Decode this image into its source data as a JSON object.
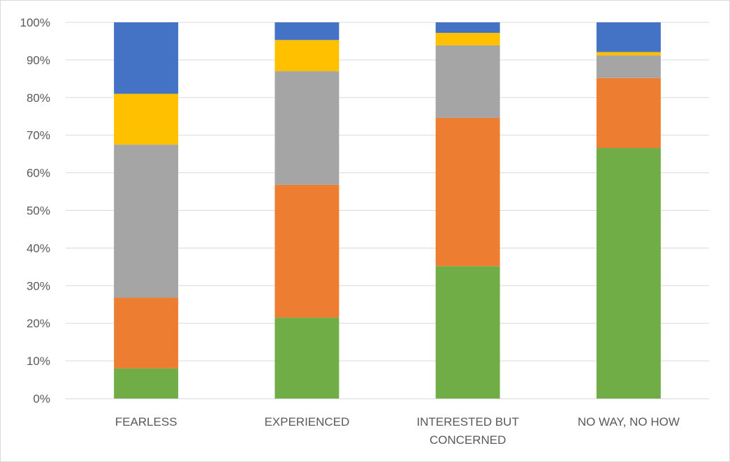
{
  "chart_data": {
    "type": "bar",
    "stacked": "percent",
    "categories": [
      "FEARLESS",
      "EXPERIENCED",
      "INTERESTED BUT CONCERNED",
      "NO WAY, NO HOW"
    ],
    "category_label_lines": [
      [
        "FEARLESS"
      ],
      [
        "EXPERIENCED"
      ],
      [
        "INTERESTED BUT",
        "CONCERNED"
      ],
      [
        "NO WAY, NO HOW"
      ]
    ],
    "series": [
      {
        "color": "#70ad47",
        "values": [
          8,
          21.5,
          35.2,
          66.6
        ]
      },
      {
        "color": "#ed7d31",
        "values": [
          18.8,
          35.3,
          39.4,
          18.6
        ]
      },
      {
        "color": "#a5a5a5",
        "values": [
          40.7,
          30.2,
          19.3,
          6
        ]
      },
      {
        "color": "#ffc000",
        "values": [
          13.5,
          8.3,
          3.3,
          0.9
        ]
      },
      {
        "color": "#4472c4",
        "values": [
          19,
          4.7,
          2.8,
          7.9
        ]
      }
    ],
    "ylim": [
      0,
      100
    ],
    "y_ticks": [
      0,
      10,
      20,
      30,
      40,
      50,
      60,
      70,
      80,
      90,
      100
    ],
    "y_tick_labels": [
      "0%",
      "10%",
      "20%",
      "30%",
      "40%",
      "50%",
      "60%",
      "70%",
      "80%",
      "90%",
      "100%"
    ],
    "grid": true,
    "legend": "none",
    "title": "",
    "xlabel": "",
    "ylabel": ""
  }
}
